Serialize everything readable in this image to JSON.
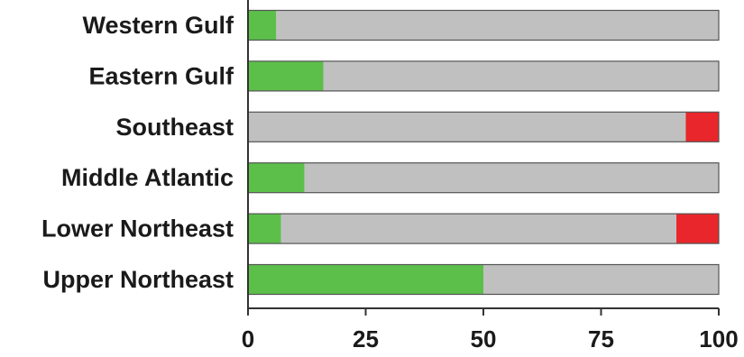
{
  "chart_data": {
    "type": "bar",
    "orientation": "horizontal",
    "stacked": true,
    "categories": [
      "Western Gulf",
      "Eastern Gulf",
      "Southeast",
      "Middle Atlantic",
      "Lower Northeast",
      "Upper Northeast"
    ],
    "series": [
      {
        "color": "#5cbf4a",
        "values": [
          6,
          16,
          0,
          12,
          7,
          50
        ]
      },
      {
        "color": "#c0c0c0",
        "values": [
          94,
          84,
          93,
          88,
          84,
          50
        ]
      },
      {
        "color": "#e8262b",
        "values": [
          0,
          0,
          7,
          0,
          9,
          0
        ]
      }
    ],
    "xlim": [
      0,
      100
    ],
    "xticks": [
      "0",
      "25",
      "50",
      "75",
      "100"
    ],
    "grid": false,
    "title": "",
    "xlabel": "",
    "ylabel": ""
  }
}
